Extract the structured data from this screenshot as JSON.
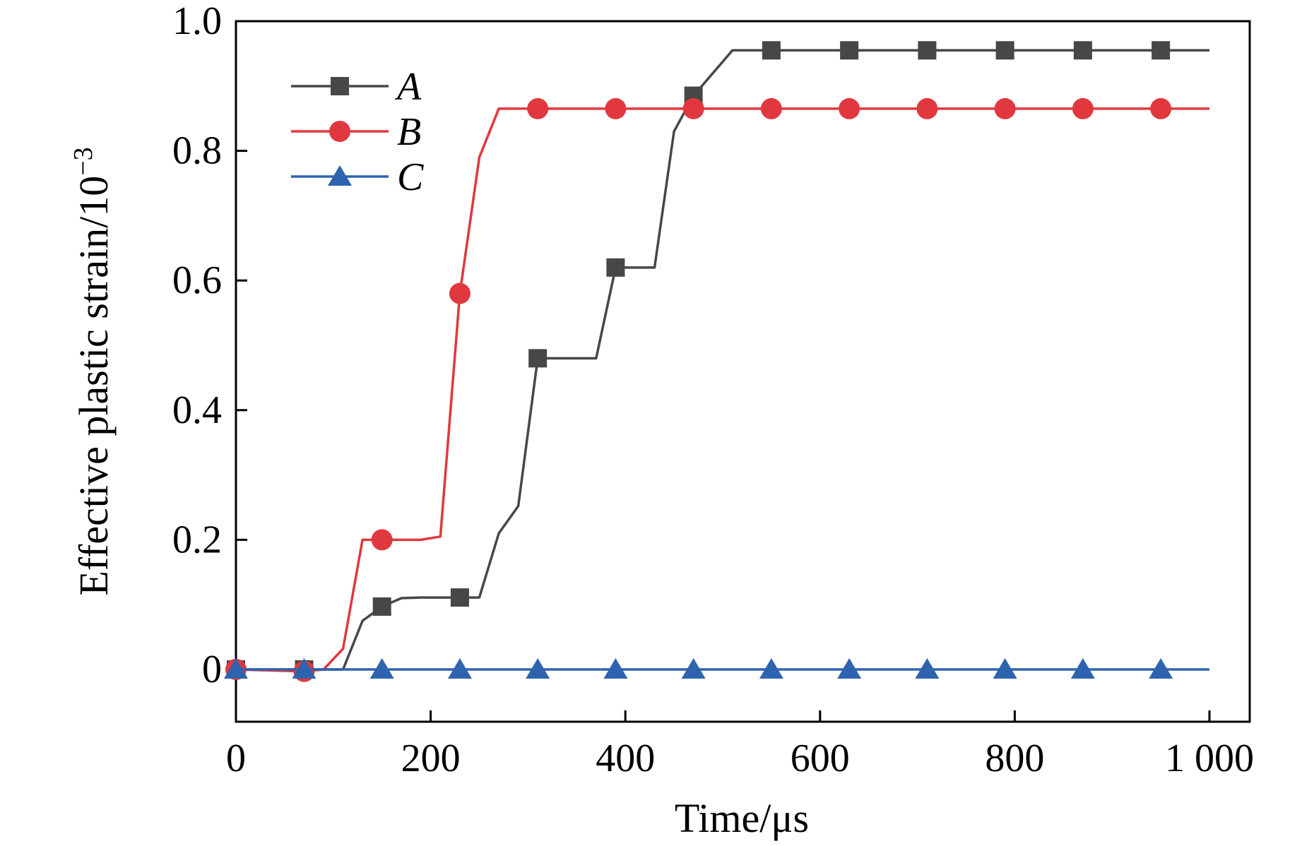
{
  "chart_data": {
    "type": "line",
    "title": "",
    "xlabel": "Time/μs",
    "ylabel": "Effective plastic strain/10",
    "ylabel_exponent": "−3",
    "xlim": [
      0,
      1000
    ],
    "ylim": [
      -0.08,
      1.0
    ],
    "x_ticks": [
      0,
      200,
      400,
      600,
      800,
      1000
    ],
    "x_tick_labels": [
      "0",
      "200",
      "400",
      "600",
      "800",
      "1 000"
    ],
    "y_ticks": [
      0,
      0.2,
      0.4,
      0.6,
      0.8,
      1.0
    ],
    "y_tick_labels": [
      "0",
      "0.2",
      "0.4",
      "0.6",
      "0.8",
      "1.0"
    ],
    "grid": false,
    "legend_position": "top-left",
    "series": [
      {
        "name": "A",
        "color": "#474747",
        "marker": "square",
        "line": [
          [
            0,
            0
          ],
          [
            70,
            0
          ],
          [
            110,
            0
          ],
          [
            130,
            0.075
          ],
          [
            150,
            0.097
          ],
          [
            170,
            0.11
          ],
          [
            190,
            0.111
          ],
          [
            230,
            0.111
          ],
          [
            250,
            0.111
          ],
          [
            270,
            0.21
          ],
          [
            290,
            0.252
          ],
          [
            310,
            0.48
          ],
          [
            350,
            0.48
          ],
          [
            370,
            0.48
          ],
          [
            390,
            0.62
          ],
          [
            410,
            0.62
          ],
          [
            430,
            0.62
          ],
          [
            450,
            0.83
          ],
          [
            470,
            0.885
          ],
          [
            490,
            0.92
          ],
          [
            510,
            0.955
          ],
          [
            550,
            0.955
          ],
          [
            1000,
            0.955
          ]
        ],
        "markers": [
          [
            0,
            0
          ],
          [
            70,
            0
          ],
          [
            150,
            0.097
          ],
          [
            230,
            0.111
          ],
          [
            310,
            0.48
          ],
          [
            390,
            0.62
          ],
          [
            470,
            0.885
          ],
          [
            550,
            0.955
          ],
          [
            630,
            0.955
          ],
          [
            710,
            0.955
          ],
          [
            790,
            0.955
          ],
          [
            870,
            0.955
          ],
          [
            950,
            0.955
          ]
        ]
      },
      {
        "name": "B",
        "color": "#e0383e",
        "marker": "circle",
        "line": [
          [
            0,
            0
          ],
          [
            70,
            -0.003
          ],
          [
            90,
            0
          ],
          [
            110,
            0.032
          ],
          [
            130,
            0.2
          ],
          [
            150,
            0.2
          ],
          [
            190,
            0.2
          ],
          [
            210,
            0.205
          ],
          [
            230,
            0.58
          ],
          [
            250,
            0.79
          ],
          [
            270,
            0.865
          ],
          [
            310,
            0.865
          ],
          [
            1000,
            0.865
          ]
        ],
        "markers": [
          [
            0,
            0
          ],
          [
            70,
            -0.003
          ],
          [
            150,
            0.2
          ],
          [
            230,
            0.58
          ],
          [
            310,
            0.865
          ],
          [
            390,
            0.865
          ],
          [
            470,
            0.865
          ],
          [
            550,
            0.865
          ],
          [
            630,
            0.865
          ],
          [
            710,
            0.865
          ],
          [
            790,
            0.865
          ],
          [
            870,
            0.865
          ],
          [
            950,
            0.865
          ]
        ]
      },
      {
        "name": "C",
        "color": "#2e63b0",
        "marker": "triangle",
        "line": [
          [
            0,
            0
          ],
          [
            1000,
            0
          ]
        ],
        "markers": [
          [
            0,
            0
          ],
          [
            70,
            0
          ],
          [
            150,
            0
          ],
          [
            230,
            0
          ],
          [
            310,
            0
          ],
          [
            390,
            0
          ],
          [
            470,
            0
          ],
          [
            550,
            0
          ],
          [
            630,
            0
          ],
          [
            710,
            0
          ],
          [
            790,
            0
          ],
          [
            870,
            0
          ],
          [
            950,
            0
          ]
        ]
      }
    ]
  }
}
